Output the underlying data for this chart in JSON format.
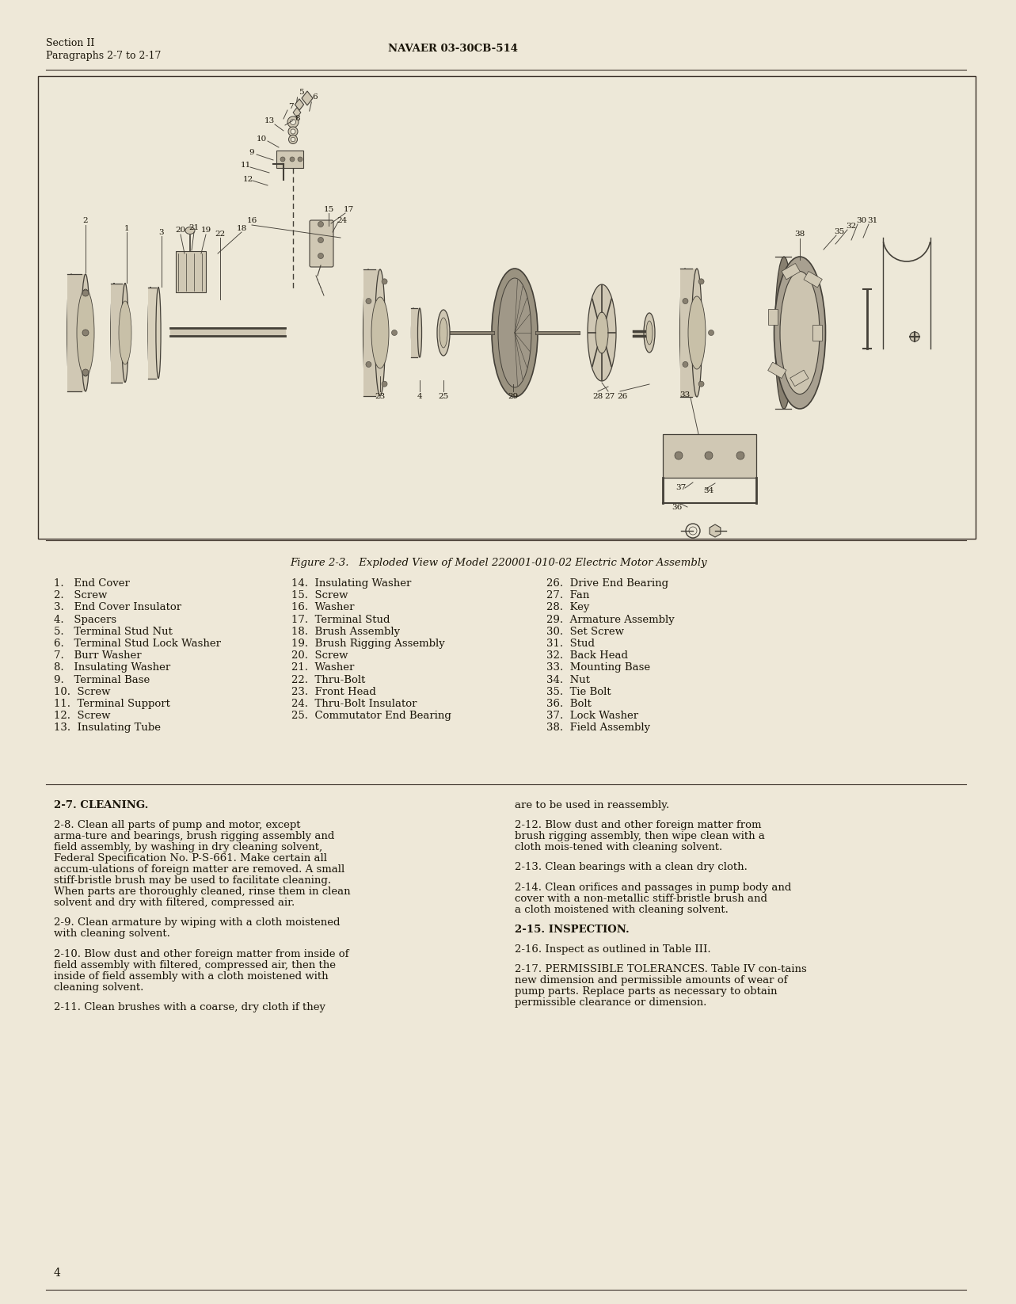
{
  "page_bg": "#eee8d8",
  "diagram_bg": "#ede8d8",
  "header_left_line1": "Section II",
  "header_left_line2": "Paragraphs 2-7 to 2-17",
  "header_center": "NAVAER 03-30CB-514",
  "figure_caption": "Figure 2-3.   Exploded View of Model 220001-010-02 Electric Motor Assembly",
  "parts_list_col1": [
    "1.   End Cover",
    "2.   Screw",
    "3.   End Cover Insulator",
    "4.   Spacers",
    "5.   Terminal Stud Nut",
    "6.   Terminal Stud Lock Washer",
    "7.   Burr Washer",
    "8.   Insulating Washer",
    "9.   Terminal Base",
    "10.  Screw",
    "11.  Terminal Support",
    "12.  Screw",
    "13.  Insulating Tube"
  ],
  "parts_list_col2": [
    "14.  Insulating Washer",
    "15.  Screw",
    "16.  Washer",
    "17.  Terminal Stud",
    "18.  Brush Assembly",
    "19.  Brush Rigging Assembly",
    "20.  Screw",
    "21.  Washer",
    "22.  Thru-Bolt",
    "23.  Front Head",
    "24.  Thru-Bolt Insulator",
    "25.  Commutator End Bearing"
  ],
  "parts_list_col3": [
    "26.  Drive End Bearing",
    "27.  Fan",
    "28.  Key",
    "29.  Armature Assembly",
    "30.  Set Screw",
    "31.  Stud",
    "32.  Back Head",
    "33.  Mounting Base",
    "34.  Nut",
    "35.  Tie Bolt",
    "36.  Bolt",
    "37.  Lock Washer",
    "38.  Field Assembly"
  ],
  "section_27_title": "2-7.  CLEANING.",
  "para_28": "2-8.   Clean all parts of pump and motor, except arma-ture and bearings,  brush rigging assembly and field assembly, by washing in dry cleaning solvent, Federal Specification No. P-S-661.   Make certain all accum-ulations of foreign matter are removed.   A small stiff-bristle brush may be used to facilitate cleaning. When parts are thoroughly cleaned,  rinse them in clean solvent and dry with filtered,  compressed air.",
  "para_29": "2-9.   Clean armature by wiping with a cloth moistened with cleaning solvent.",
  "para_210": "2-10.  Blow dust and other foreign matter from inside of field assembly with filtered, compressed air, then the inside of field assembly with a cloth moistened with cleaning solvent.",
  "para_211": "2-11.  Clean brushes with a coarse, dry cloth if they",
  "para_212_right": "are to be used in reassembly.",
  "para_212": "2-12.  Blow dust and other foreign matter from brush rigging assembly, then wipe clean with a cloth mois-tened with cleaning solvent.",
  "para_213": "2-13.  Clean bearings with a clean dry cloth.",
  "para_214": "2-14.  Clean orifices and passages in pump body and cover with a non-metallic stiff-bristle brush and a cloth moistened with cleaning solvent.",
  "para_215_title": "2-15.  INSPECTION.",
  "para_216": "2-16.  Inspect as outlined in Table III.",
  "para_217": "2-17.  PERMISSIBLE TOLERANCES.   Table IV con-tains new dimension and permissible amounts of wear of pump parts.  Replace parts as necessary to obtain permissible clearance or dimension.",
  "page_number": "4",
  "text_color": "#1a1509",
  "dark": "#3a3028"
}
